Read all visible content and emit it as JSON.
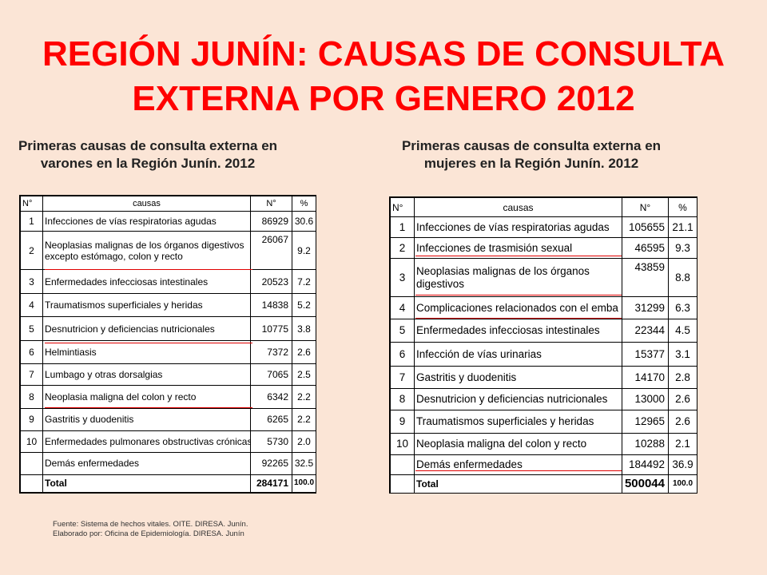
{
  "title": {
    "line1": "REGIÓN JUNÍN: CAUSAS DE CONSULTA",
    "line2": "EXTERNA POR GENERO 2012"
  },
  "left": {
    "subtitle": "Primeras causas de consulta externa en varones en la Región Junín. 2012",
    "headers": {
      "num": "N°",
      "cause": "causas",
      "count": "N°",
      "pct": "%"
    },
    "rows": [
      {
        "num": "1",
        "cause": "Infecciones de vías respiratorias agudas",
        "count": "86929",
        "pct": "30.6"
      },
      {
        "num": "2",
        "cause": "Neoplasias malignas de los órganos digestivos excepto estómago, colon y recto",
        "count": "26067",
        "pct": "9.2"
      },
      {
        "num": "3",
        "cause": "Enfermedades infecciosas intestinales",
        "count": "20523",
        "pct": "7.2"
      },
      {
        "num": "4",
        "cause": "Traumatismos superficiales y heridas",
        "count": "14838",
        "pct": "5.2"
      },
      {
        "num": "5",
        "cause": "Desnutricion y deficiencias nutricionales",
        "count": "10775",
        "pct": "3.8"
      },
      {
        "num": "6",
        "cause": "Helmintiasis",
        "count": "7372",
        "pct": "2.6"
      },
      {
        "num": "7",
        "cause": "Lumbago y otras dorsalgias",
        "count": "7065",
        "pct": "2.5"
      },
      {
        "num": "8",
        "cause": "Neoplasia maligna del colon y recto",
        "count": "6342",
        "pct": "2.2"
      },
      {
        "num": "9",
        "cause": "Gastritis y duodenitis",
        "count": "6265",
        "pct": "2.2"
      },
      {
        "num": "10",
        "cause": "Enfermedades pulmonares obstructivas crónicas",
        "count": "5730",
        "pct": "2.0"
      },
      {
        "num": "",
        "cause": "Demás enfermedades",
        "count": "92265",
        "pct": "32.5"
      }
    ],
    "total": {
      "label": "Total",
      "count": "284171",
      "pct": "100.0"
    }
  },
  "right": {
    "subtitle": "Primeras causas de consulta externa en mujeres en la Región Junín. 2012",
    "headers": {
      "num": "N°",
      "cause": "causas",
      "count": "N°",
      "pct": "%"
    },
    "rows": [
      {
        "num": "1",
        "cause": "Infecciones de vías respiratorias agudas",
        "count": "105655",
        "pct": "21.1"
      },
      {
        "num": "2",
        "cause": "Infecciones de trasmisión sexual",
        "count": "46595",
        "pct": "9.3"
      },
      {
        "num": "3",
        "cause": "Neoplasias malignas de los órganos digestivos",
        "count": "43859",
        "pct": "8.8"
      },
      {
        "num": "4",
        "cause": "Complicaciones relacionados con el emba",
        "count": "31299",
        "pct": "6.3"
      },
      {
        "num": "5",
        "cause": "Enfermedades infecciosas intestinales",
        "count": "22344",
        "pct": "4.5"
      },
      {
        "num": "6",
        "cause": "Infección de vías urinarias",
        "count": "15377",
        "pct": "3.1"
      },
      {
        "num": "7",
        "cause": "Gastritis y duodenitis",
        "count": "14170",
        "pct": "2.8"
      },
      {
        "num": "8",
        "cause": "Desnutricion y deficiencias nutricionales",
        "count": "13000",
        "pct": "2.6"
      },
      {
        "num": "9",
        "cause": "Traumatismos superficiales y heridas",
        "count": "12965",
        "pct": "2.6"
      },
      {
        "num": "10",
        "cause": "Neoplasia maligna del colon y recto",
        "count": "10288",
        "pct": "2.1"
      },
      {
        "num": "",
        "cause": "Demás enfermedades",
        "count": "184492",
        "pct": "36.9"
      }
    ],
    "total": {
      "label": "Total",
      "count": "500044",
      "pct": "100.0"
    }
  },
  "source": {
    "line1": "Fuente: Sistema de hechos vitales. OITE. DIRESA. Junín.",
    "line2": "Elaborado por: Oficina de Epidemiología. DIRESA. Junín"
  }
}
